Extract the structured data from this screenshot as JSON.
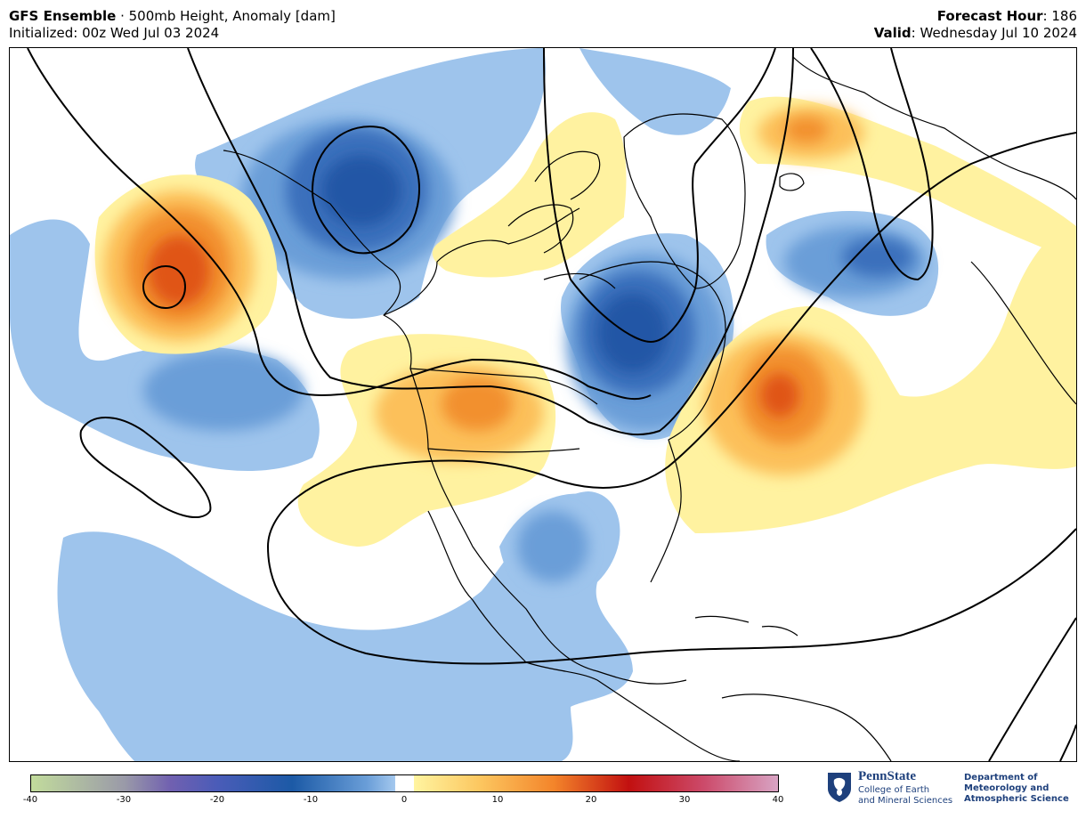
{
  "header": {
    "model_bold": "GFS Ensemble",
    "separator": " · ",
    "field": "500mb Height, Anomaly [dam]",
    "initialized": "Initialized: 00z Wed Jul 03 2024",
    "forecast_hour_label": "Forecast Hour",
    "forecast_hour_value": ": 186",
    "valid_label": "Valid",
    "valid_value": ": Wednesday Jul 10 2024"
  },
  "colorbar": {
    "min": -40,
    "max": 40,
    "tick_labels": [
      "-40",
      "-30",
      "-20",
      "-10",
      "0",
      "10",
      "20",
      "30",
      "40"
    ],
    "colors": {
      "neg40": "#c2dc9c",
      "neg30": "#9a9aa8",
      "neg25": "#7060b0",
      "neg20": "#4a5cb8",
      "neg12": "#1c5aa6",
      "neg4": "#6a9ed8",
      "neg2": "#a4c8ee",
      "zero": "#ffffff",
      "pos2": "#fff4a0",
      "pos8": "#fcc760",
      "pos16": "#f3842a",
      "pos24": "#c21010",
      "pos32": "#cc4a6a",
      "pos40": "#d8a4c4"
    }
  },
  "map_colors": {
    "neg_light": "#9ec4ec",
    "neg_mid": "#6a9ed8",
    "neg_deep": "#3a70bc",
    "neg_core": "#2156a6",
    "pos_light": "#fff2a0",
    "pos_mid": "#fcc05a",
    "pos_deep": "#f2902e",
    "pos_core": "#e05518",
    "land_line": "#000000",
    "contour_line": "#000000"
  },
  "logo": {
    "name": "PennState",
    "college_line1": "College of Earth",
    "college_line2": "and Mineral Sciences",
    "dept_line1": "Department of",
    "dept_line2": "Meteorology and",
    "dept_line3": "Atmospheric Science"
  }
}
